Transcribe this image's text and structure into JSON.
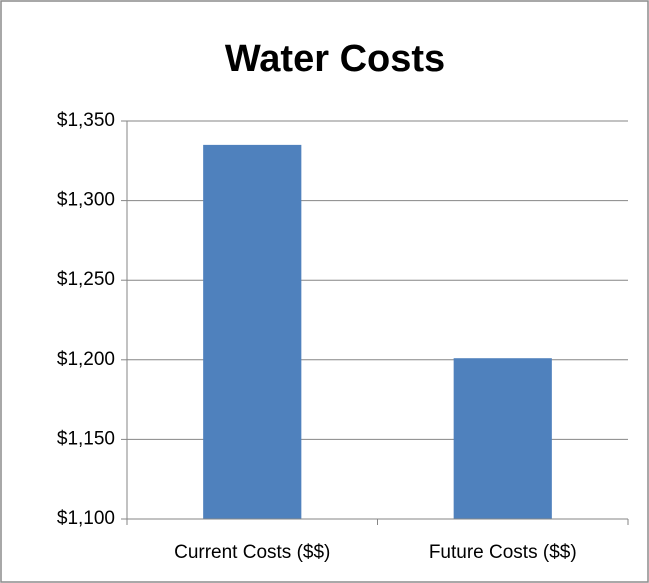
{
  "chart_data": {
    "type": "bar",
    "title": "Water Costs",
    "categories": [
      "Current Costs ($$)",
      "Future Costs ($$)"
    ],
    "values": [
      1335,
      1201
    ],
    "color": "#4f81bd",
    "ylim": [
      1100,
      1350
    ],
    "yticks": [
      {
        "value": 1100,
        "label": "$1,100"
      },
      {
        "value": 1150,
        "label": "$1,150"
      },
      {
        "value": 1200,
        "label": "$1,200"
      },
      {
        "value": 1250,
        "label": "$1,250"
      },
      {
        "value": 1300,
        "label": "$1,300"
      },
      {
        "value": 1350,
        "label": "$1,350"
      }
    ],
    "grid": true
  }
}
